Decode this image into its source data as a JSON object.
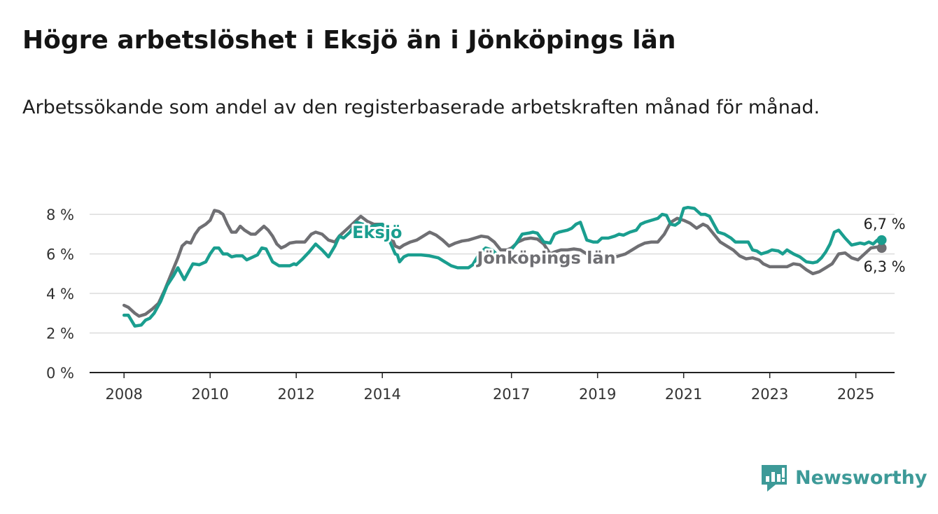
{
  "chart_data": {
    "type": "line",
    "title": "Högre arbetslöshet i Eksjö än i Jönköpings län",
    "subtitle": "Arbetssökande som andel av den registerbaserade arbetskraften månad för månad.",
    "ylim": [
      0,
      8.5
    ],
    "xlim": [
      2007.2,
      2025.9
    ],
    "y_ticks": [
      {
        "value": 0,
        "label": "0 %"
      },
      {
        "value": 2,
        "label": "2 %"
      },
      {
        "value": 4,
        "label": "4 %"
      },
      {
        "value": 6,
        "label": "6 %"
      },
      {
        "value": 8,
        "label": "8 %"
      }
    ],
    "x_ticks": [
      {
        "value": 2008,
        "label": "2008"
      },
      {
        "value": 2010,
        "label": "2010"
      },
      {
        "value": 2012,
        "label": "2012"
      },
      {
        "value": 2014,
        "label": "2014"
      },
      {
        "value": 2017,
        "label": "2017"
      },
      {
        "value": 2019,
        "label": "2019"
      },
      {
        "value": 2021,
        "label": "2021"
      },
      {
        "value": 2023,
        "label": "2023"
      },
      {
        "value": 2025,
        "label": "2025"
      }
    ],
    "grid": "horizontal",
    "series": [
      {
        "name": "Eksjö",
        "color": "#1a9e8f",
        "label_at": [
          2013.3,
          6.8
        ],
        "end_label": "6,7 %",
        "points": [
          [
            2008.0,
            2.9
          ],
          [
            2008.1,
            2.9
          ],
          [
            2008.25,
            2.35
          ],
          [
            2008.4,
            2.4
          ],
          [
            2008.5,
            2.65
          ],
          [
            2008.6,
            2.75
          ],
          [
            2008.7,
            3.0
          ],
          [
            2008.85,
            3.6
          ],
          [
            2009.0,
            4.4
          ],
          [
            2009.15,
            4.9
          ],
          [
            2009.25,
            5.3
          ],
          [
            2009.4,
            4.7
          ],
          [
            2009.5,
            5.1
          ],
          [
            2009.6,
            5.5
          ],
          [
            2009.75,
            5.45
          ],
          [
            2009.9,
            5.6
          ],
          [
            2010.0,
            6.0
          ],
          [
            2010.1,
            6.3
          ],
          [
            2010.2,
            6.3
          ],
          [
            2010.3,
            6.0
          ],
          [
            2010.4,
            6.0
          ],
          [
            2010.5,
            5.85
          ],
          [
            2010.6,
            5.9
          ],
          [
            2010.75,
            5.9
          ],
          [
            2010.85,
            5.7
          ],
          [
            2011.0,
            5.85
          ],
          [
            2011.1,
            5.95
          ],
          [
            2011.2,
            6.3
          ],
          [
            2011.3,
            6.25
          ],
          [
            2011.45,
            5.6
          ],
          [
            2011.6,
            5.4
          ],
          [
            2011.75,
            5.4
          ],
          [
            2011.85,
            5.4
          ],
          [
            2011.95,
            5.5
          ],
          [
            2012.0,
            5.45
          ],
          [
            2012.15,
            5.75
          ],
          [
            2012.3,
            6.1
          ],
          [
            2012.45,
            6.5
          ],
          [
            2012.6,
            6.2
          ],
          [
            2012.75,
            5.85
          ],
          [
            2012.9,
            6.4
          ],
          [
            2013.0,
            6.9
          ],
          [
            2013.1,
            6.8
          ],
          [
            2013.25,
            7.1
          ],
          [
            2013.4,
            7.6
          ],
          [
            2013.55,
            7.5
          ],
          [
            2013.7,
            7.35
          ],
          [
            2013.85,
            7.45
          ],
          [
            2014.0,
            7.5
          ],
          [
            2014.1,
            7.0
          ],
          [
            2014.2,
            6.5
          ],
          [
            2014.3,
            6.0
          ],
          [
            2014.35,
            5.95
          ],
          [
            2014.4,
            5.6
          ],
          [
            2014.5,
            5.85
          ],
          [
            2014.6,
            5.95
          ],
          [
            2014.75,
            5.95
          ],
          [
            2014.9,
            5.95
          ],
          [
            2015.1,
            5.9
          ],
          [
            2015.3,
            5.8
          ],
          [
            2015.45,
            5.6
          ],
          [
            2015.6,
            5.4
          ],
          [
            2015.75,
            5.3
          ],
          [
            2015.9,
            5.3
          ],
          [
            2016.0,
            5.3
          ],
          [
            2016.1,
            5.45
          ],
          [
            2016.25,
            6.0
          ],
          [
            2016.4,
            6.3
          ],
          [
            2016.55,
            6.2
          ],
          [
            2016.7,
            5.9
          ],
          [
            2016.85,
            5.8
          ],
          [
            2016.95,
            6.1
          ],
          [
            2017.1,
            6.5
          ],
          [
            2017.25,
            7.0
          ],
          [
            2017.4,
            7.05
          ],
          [
            2017.5,
            7.1
          ],
          [
            2017.6,
            7.05
          ],
          [
            2017.75,
            6.6
          ],
          [
            2017.9,
            6.55
          ],
          [
            2018.0,
            7.0
          ],
          [
            2018.1,
            7.1
          ],
          [
            2018.2,
            7.15
          ],
          [
            2018.3,
            7.2
          ],
          [
            2018.4,
            7.3
          ],
          [
            2018.5,
            7.5
          ],
          [
            2018.6,
            7.6
          ],
          [
            2018.75,
            6.7
          ],
          [
            2018.9,
            6.6
          ],
          [
            2019.0,
            6.6
          ],
          [
            2019.1,
            6.8
          ],
          [
            2019.25,
            6.8
          ],
          [
            2019.4,
            6.9
          ],
          [
            2019.5,
            7.0
          ],
          [
            2019.6,
            6.95
          ],
          [
            2019.75,
            7.1
          ],
          [
            2019.9,
            7.2
          ],
          [
            2020.0,
            7.5
          ],
          [
            2020.1,
            7.6
          ],
          [
            2020.25,
            7.7
          ],
          [
            2020.4,
            7.8
          ],
          [
            2020.5,
            8.0
          ],
          [
            2020.6,
            7.95
          ],
          [
            2020.7,
            7.5
          ],
          [
            2020.8,
            7.45
          ],
          [
            2020.9,
            7.6
          ],
          [
            2021.0,
            8.3
          ],
          [
            2021.1,
            8.35
          ],
          [
            2021.25,
            8.3
          ],
          [
            2021.4,
            8.0
          ],
          [
            2021.5,
            8.0
          ],
          [
            2021.6,
            7.9
          ],
          [
            2021.7,
            7.5
          ],
          [
            2021.8,
            7.1
          ],
          [
            2021.95,
            7.0
          ],
          [
            2022.1,
            6.8
          ],
          [
            2022.2,
            6.6
          ],
          [
            2022.3,
            6.6
          ],
          [
            2022.5,
            6.6
          ],
          [
            2022.6,
            6.2
          ],
          [
            2022.7,
            6.15
          ],
          [
            2022.8,
            6.0
          ],
          [
            2022.95,
            6.1
          ],
          [
            2023.05,
            6.2
          ],
          [
            2023.2,
            6.15
          ],
          [
            2023.3,
            6.0
          ],
          [
            2023.4,
            6.2
          ],
          [
            2023.55,
            6.0
          ],
          [
            2023.7,
            5.85
          ],
          [
            2023.85,
            5.6
          ],
          [
            2024.0,
            5.55
          ],
          [
            2024.1,
            5.6
          ],
          [
            2024.2,
            5.8
          ],
          [
            2024.3,
            6.1
          ],
          [
            2024.4,
            6.5
          ],
          [
            2024.5,
            7.1
          ],
          [
            2024.6,
            7.2
          ],
          [
            2024.75,
            6.8
          ],
          [
            2024.9,
            6.45
          ],
          [
            2025.0,
            6.5
          ],
          [
            2025.1,
            6.55
          ],
          [
            2025.2,
            6.5
          ],
          [
            2025.3,
            6.6
          ],
          [
            2025.4,
            6.5
          ],
          [
            2025.5,
            6.7
          ],
          [
            2025.6,
            6.7
          ]
        ]
      },
      {
        "name": "Jönköpings län",
        "color": "#6f6f73",
        "label_at": [
          2016.2,
          5.5
        ],
        "end_label": "6,3 %",
        "points": [
          [
            2008.0,
            3.4
          ],
          [
            2008.1,
            3.3
          ],
          [
            2008.25,
            3.0
          ],
          [
            2008.35,
            2.85
          ],
          [
            2008.5,
            2.95
          ],
          [
            2008.65,
            3.2
          ],
          [
            2008.8,
            3.5
          ],
          [
            2008.95,
            4.2
          ],
          [
            2009.1,
            5.0
          ],
          [
            2009.25,
            5.8
          ],
          [
            2009.35,
            6.4
          ],
          [
            2009.45,
            6.6
          ],
          [
            2009.55,
            6.55
          ],
          [
            2009.65,
            7.0
          ],
          [
            2009.75,
            7.3
          ],
          [
            2009.9,
            7.5
          ],
          [
            2010.0,
            7.7
          ],
          [
            2010.1,
            8.2
          ],
          [
            2010.2,
            8.15
          ],
          [
            2010.3,
            8.0
          ],
          [
            2010.4,
            7.5
          ],
          [
            2010.5,
            7.1
          ],
          [
            2010.6,
            7.1
          ],
          [
            2010.7,
            7.4
          ],
          [
            2010.8,
            7.2
          ],
          [
            2010.95,
            7.0
          ],
          [
            2011.05,
            7.0
          ],
          [
            2011.15,
            7.2
          ],
          [
            2011.25,
            7.4
          ],
          [
            2011.35,
            7.2
          ],
          [
            2011.45,
            6.9
          ],
          [
            2011.55,
            6.5
          ],
          [
            2011.65,
            6.3
          ],
          [
            2011.75,
            6.4
          ],
          [
            2011.85,
            6.55
          ],
          [
            2012.0,
            6.6
          ],
          [
            2012.2,
            6.6
          ],
          [
            2012.35,
            7.0
          ],
          [
            2012.45,
            7.1
          ],
          [
            2012.6,
            7.0
          ],
          [
            2012.75,
            6.7
          ],
          [
            2012.9,
            6.6
          ],
          [
            2013.0,
            6.9
          ],
          [
            2013.2,
            7.3
          ],
          [
            2013.35,
            7.6
          ],
          [
            2013.5,
            7.9
          ],
          [
            2013.65,
            7.65
          ],
          [
            2013.8,
            7.5
          ],
          [
            2014.0,
            7.5
          ],
          [
            2014.15,
            7.2
          ],
          [
            2014.3,
            6.4
          ],
          [
            2014.4,
            6.3
          ],
          [
            2014.5,
            6.45
          ],
          [
            2014.65,
            6.6
          ],
          [
            2014.8,
            6.7
          ],
          [
            2014.95,
            6.9
          ],
          [
            2015.1,
            7.1
          ],
          [
            2015.25,
            6.95
          ],
          [
            2015.4,
            6.7
          ],
          [
            2015.55,
            6.4
          ],
          [
            2015.7,
            6.55
          ],
          [
            2015.85,
            6.65
          ],
          [
            2016.0,
            6.7
          ],
          [
            2016.15,
            6.8
          ],
          [
            2016.3,
            6.9
          ],
          [
            2016.45,
            6.85
          ],
          [
            2016.6,
            6.6
          ],
          [
            2016.75,
            6.2
          ],
          [
            2016.9,
            6.2
          ],
          [
            2017.0,
            6.3
          ],
          [
            2017.15,
            6.6
          ],
          [
            2017.3,
            6.75
          ],
          [
            2017.45,
            6.8
          ],
          [
            2017.6,
            6.75
          ],
          [
            2017.75,
            6.5
          ],
          [
            2017.9,
            6.0
          ],
          [
            2018.0,
            6.1
          ],
          [
            2018.15,
            6.2
          ],
          [
            2018.3,
            6.2
          ],
          [
            2018.45,
            6.25
          ],
          [
            2018.6,
            6.2
          ],
          [
            2018.75,
            6.0
          ],
          [
            2018.9,
            5.8
          ],
          [
            2019.05,
            5.7
          ],
          [
            2019.2,
            5.75
          ],
          [
            2019.35,
            5.8
          ],
          [
            2019.5,
            5.9
          ],
          [
            2019.65,
            6.0
          ],
          [
            2019.8,
            6.2
          ],
          [
            2019.95,
            6.4
          ],
          [
            2020.1,
            6.55
          ],
          [
            2020.25,
            6.6
          ],
          [
            2020.4,
            6.6
          ],
          [
            2020.55,
            7.0
          ],
          [
            2020.7,
            7.6
          ],
          [
            2020.85,
            7.8
          ],
          [
            2021.0,
            7.7
          ],
          [
            2021.15,
            7.55
          ],
          [
            2021.3,
            7.3
          ],
          [
            2021.45,
            7.5
          ],
          [
            2021.55,
            7.4
          ],
          [
            2021.7,
            7.0
          ],
          [
            2021.85,
            6.6
          ],
          [
            2022.0,
            6.4
          ],
          [
            2022.15,
            6.2
          ],
          [
            2022.3,
            5.9
          ],
          [
            2022.45,
            5.75
          ],
          [
            2022.6,
            5.8
          ],
          [
            2022.75,
            5.7
          ],
          [
            2022.85,
            5.5
          ],
          [
            2023.0,
            5.35
          ],
          [
            2023.2,
            5.35
          ],
          [
            2023.4,
            5.35
          ],
          [
            2023.55,
            5.5
          ],
          [
            2023.7,
            5.45
          ],
          [
            2023.85,
            5.2
          ],
          [
            2024.0,
            5.0
          ],
          [
            2024.15,
            5.1
          ],
          [
            2024.3,
            5.3
          ],
          [
            2024.45,
            5.5
          ],
          [
            2024.6,
            6.0
          ],
          [
            2024.75,
            6.05
          ],
          [
            2024.9,
            5.8
          ],
          [
            2025.05,
            5.7
          ],
          [
            2025.2,
            6.0
          ],
          [
            2025.35,
            6.3
          ],
          [
            2025.5,
            6.35
          ],
          [
            2025.6,
            6.3
          ]
        ]
      }
    ]
  },
  "brand": {
    "name": "Newsworthy",
    "icon": "newsworthy-logo-icon",
    "color": "#3d9a98"
  }
}
